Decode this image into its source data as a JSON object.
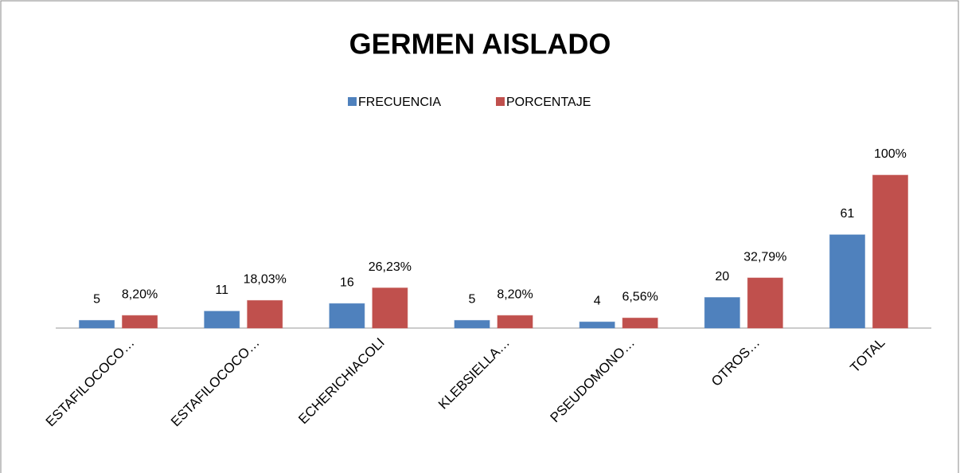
{
  "chart_data": {
    "type": "bar",
    "title": "GERMEN AISLADO",
    "categories": [
      "ESTAFILOCOCO…",
      "ESTAFILOCOCO…",
      "ECHERICHIACOLI",
      "KLEBSIELLA…",
      "PSEUDOMONO…",
      "OTROS…",
      "TOTAL"
    ],
    "series": [
      {
        "name": "FRECUENCIA",
        "color": "#4f81bd",
        "values": [
          5,
          11,
          16,
          5,
          4,
          20,
          61
        ]
      },
      {
        "name": "PORCENTAJE",
        "color": "#c0504d",
        "values": [
          8.2,
          18.03,
          26.23,
          8.2,
          6.56,
          32.79,
          100
        ],
        "value_labels": [
          "8,20%",
          "18,03%",
          "26,23%",
          "8,20%",
          "6,56%",
          "32,79%",
          "100%"
        ]
      }
    ],
    "ylim": [
      0,
      100
    ],
    "legend": "top"
  }
}
